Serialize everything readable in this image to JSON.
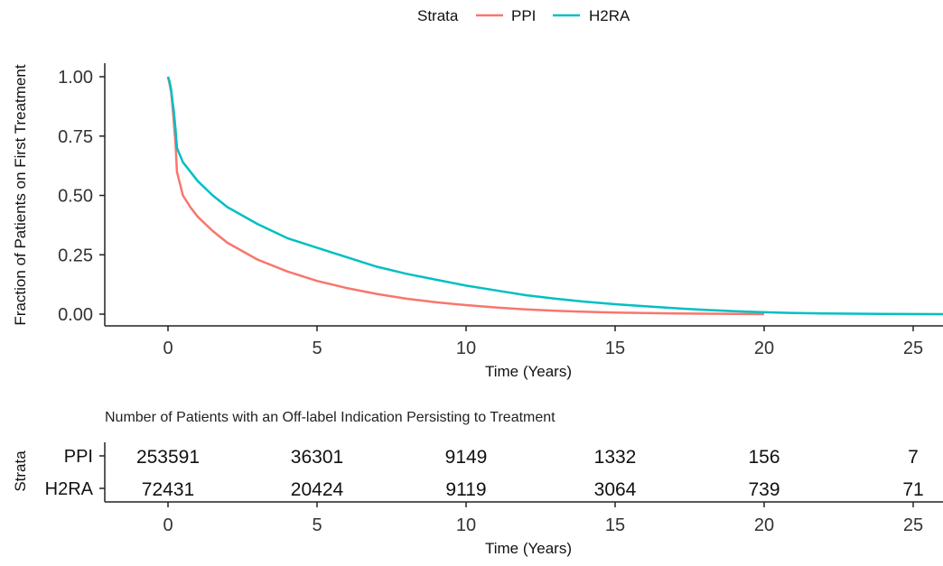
{
  "legend": {
    "title": "Strata",
    "items": [
      {
        "name": "PPI",
        "color": "#F8766D"
      },
      {
        "name": "H2RA",
        "color": "#00BFC4"
      }
    ]
  },
  "chart_data": {
    "type": "line",
    "title": "",
    "xlabel": "Time (Years)",
    "ylabel": "Fraction of Patients on First Treatment",
    "xlim": [
      -1,
      26
    ],
    "ylim": [
      0,
      1
    ],
    "x_ticks": [
      0,
      5,
      10,
      15,
      20,
      25
    ],
    "y_ticks": [
      0.0,
      0.25,
      0.5,
      0.75,
      1.0
    ],
    "y_tick_labels": [
      "0.00",
      "0.25",
      "0.50",
      "0.75",
      "1.00"
    ],
    "grid": false,
    "legend_position": "top",
    "series": [
      {
        "name": "PPI",
        "color": "#F8766D",
        "x": [
          0,
          0.05,
          0.1,
          0.15,
          0.2,
          0.25,
          0.3,
          0.5,
          0.75,
          1,
          1.5,
          2,
          3,
          4,
          5,
          6,
          7,
          8,
          9,
          10,
          11,
          12,
          13,
          14,
          15,
          16,
          17,
          18,
          19,
          20
        ],
        "y": [
          1.0,
          0.97,
          0.94,
          0.88,
          0.8,
          0.72,
          0.6,
          0.5,
          0.45,
          0.41,
          0.35,
          0.3,
          0.23,
          0.18,
          0.14,
          0.11,
          0.085,
          0.065,
          0.05,
          0.038,
          0.028,
          0.02,
          0.014,
          0.01,
          0.007,
          0.005,
          0.003,
          0.002,
          0.001,
          0.0
        ]
      },
      {
        "name": "H2RA",
        "color": "#00BFC4",
        "x": [
          0,
          0.05,
          0.1,
          0.15,
          0.2,
          0.25,
          0.3,
          0.5,
          1,
          1.5,
          2,
          3,
          4,
          5,
          6,
          7,
          8,
          9,
          10,
          11,
          12,
          13,
          14,
          15,
          16,
          17,
          18,
          19,
          20,
          21,
          22,
          23,
          24,
          25,
          26
        ],
        "y": [
          1.0,
          0.98,
          0.95,
          0.9,
          0.85,
          0.78,
          0.7,
          0.64,
          0.56,
          0.5,
          0.45,
          0.38,
          0.32,
          0.28,
          0.24,
          0.2,
          0.17,
          0.145,
          0.12,
          0.1,
          0.08,
          0.065,
          0.052,
          0.042,
          0.033,
          0.025,
          0.018,
          0.012,
          0.008,
          0.005,
          0.003,
          0.002,
          0.001,
          0.0005,
          0.0
        ]
      }
    ]
  },
  "risk_table": {
    "title": "Number of Patients with an Off-label Indication Persisting to Treatment",
    "ylabel": "Strata",
    "xlabel": "Time (Years)",
    "times": [
      0,
      5,
      10,
      15,
      20,
      25
    ],
    "time_labels": [
      "0",
      "5",
      "10",
      "15",
      "20",
      "25"
    ],
    "rows": [
      {
        "strata": "PPI",
        "color": "#F8766D",
        "values": [
          "253591",
          "36301",
          "9149",
          "1332",
          "156",
          "7"
        ]
      },
      {
        "strata": "H2RA",
        "color": "#00BFC4",
        "values": [
          "72431",
          "20424",
          "9119",
          "3064",
          "739",
          "71"
        ]
      }
    ]
  }
}
